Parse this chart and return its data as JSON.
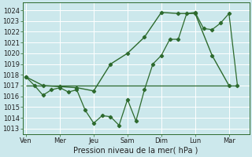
{
  "xlabel": "Pression niveau de la mer( hPa )",
  "background_color": "#cce8ec",
  "grid_color": "#ffffff",
  "line_color": "#2d6a2d",
  "ylim": [
    1012.5,
    1024.7
  ],
  "yticks": [
    1013,
    1014,
    1015,
    1016,
    1017,
    1018,
    1019,
    1020,
    1021,
    1022,
    1023,
    1024
  ],
  "day_labels": [
    "Ven",
    "Mer",
    "Jeu",
    "Sam",
    "Dim",
    "Lun",
    "Mar"
  ],
  "day_positions": [
    0,
    2,
    4,
    6,
    8,
    10,
    12
  ],
  "xlim": [
    -0.2,
    13.2
  ],
  "series1_x": [
    0,
    0.5,
    1,
    1.5,
    2,
    2.5,
    3,
    3.5,
    4,
    4.5,
    5,
    5.5,
    6,
    6.5,
    7,
    7.5,
    8,
    8.5,
    9,
    9.5,
    10,
    10.5,
    11,
    11.5,
    12,
    12.5
  ],
  "series1_y": [
    1017.8,
    1017.0,
    1016.1,
    1016.6,
    1016.8,
    1016.4,
    1016.6,
    1014.7,
    1013.5,
    1014.2,
    1014.1,
    1013.3,
    1015.7,
    1013.7,
    1016.6,
    1019.0,
    1019.8,
    1021.3,
    1021.3,
    1023.7,
    1023.8,
    1022.3,
    1022.2,
    1022.8,
    1023.7,
    1017.0
  ],
  "series2_x": [
    0,
    1,
    2,
    3,
    4,
    5,
    6,
    7,
    8,
    9,
    10,
    11,
    12
  ],
  "series2_y": [
    1017.8,
    1017.0,
    1016.9,
    1016.8,
    1016.5,
    1019.0,
    1020.0,
    1021.5,
    1023.8,
    1023.7,
    1023.7,
    1019.8,
    1017.0
  ],
  "hline_y": 1017.0,
  "hline_x_start": 0,
  "hline_x_end": 12.5
}
